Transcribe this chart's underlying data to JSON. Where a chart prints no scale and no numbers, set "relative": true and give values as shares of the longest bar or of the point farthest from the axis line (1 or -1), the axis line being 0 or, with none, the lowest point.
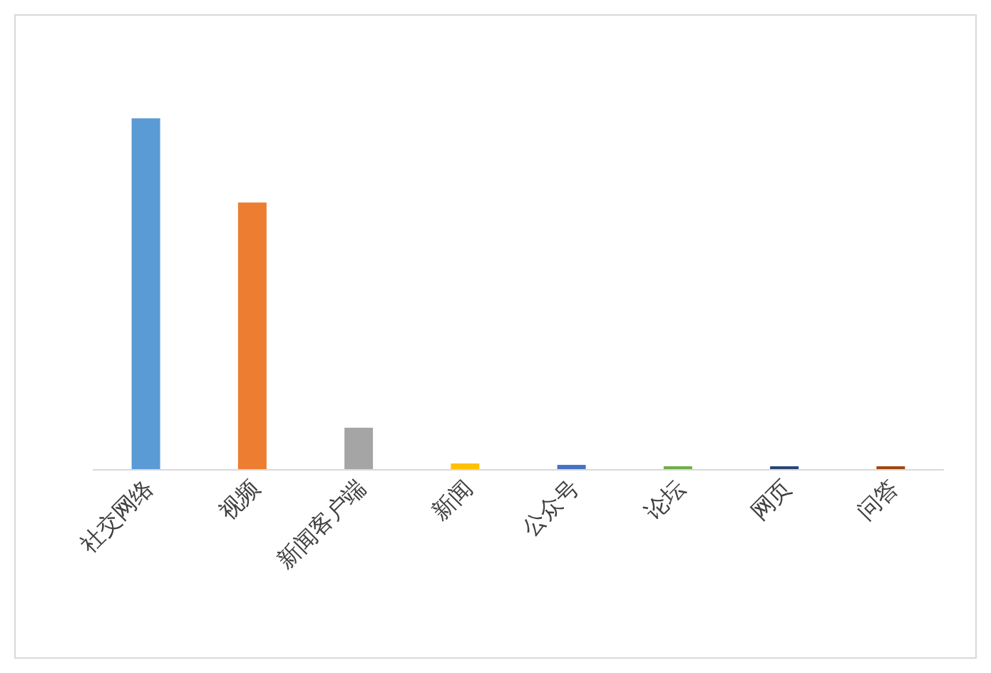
{
  "chart_data": {
    "type": "bar",
    "relative": true,
    "categories": [
      "社交网络",
      "视频",
      "新闻客户端",
      "新闻",
      "公众号",
      "论坛",
      "网页",
      "问答"
    ],
    "values": [
      1,
      0.76,
      0.118,
      0.016,
      0.012,
      0.008,
      0.008,
      0.008
    ],
    "colors": [
      "#5b9bd5",
      "#ed7d31",
      "#a5a5a5",
      "#ffc000",
      "#4472c4",
      "#70ad47",
      "#264478",
      "#9e480e"
    ]
  }
}
